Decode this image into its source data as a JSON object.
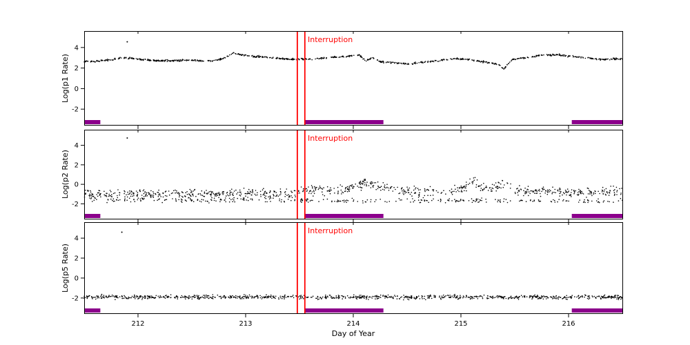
{
  "figure": {
    "xlabel": "Day of Year",
    "annotation_label": "Interruption",
    "colors": {
      "points": "#000000",
      "annotation": "#ff0000",
      "flag_bars": "#8b008b",
      "axis": "#000000",
      "background": "#ffffff"
    }
  },
  "chart_data": [
    {
      "type": "scatter",
      "ylabel": "Log(p1 Rate)",
      "xlim": [
        211.5,
        216.5
      ],
      "ylim": [
        -3.6,
        5.6
      ],
      "xticks": [
        212,
        213,
        214,
        215,
        216
      ],
      "yticks": [
        -2,
        0,
        2,
        4
      ],
      "show_xtick_labels": false,
      "interruption_x": [
        213.48,
        213.55
      ],
      "flag_bars": [
        [
          211.5,
          211.65
        ],
        [
          213.55,
          214.28
        ],
        [
          216.03,
          216.5
        ]
      ],
      "series": [
        {
          "name": "p1-rate",
          "trend": [
            [
              211.5,
              2.6
            ],
            [
              211.6,
              2.65
            ],
            [
              211.75,
              2.8
            ],
            [
              211.85,
              3.0
            ],
            [
              211.95,
              2.95
            ],
            [
              212.05,
              2.8
            ],
            [
              212.2,
              2.7
            ],
            [
              212.35,
              2.72
            ],
            [
              212.5,
              2.78
            ],
            [
              212.6,
              2.7
            ],
            [
              212.7,
              2.72
            ],
            [
              212.8,
              2.95
            ],
            [
              212.88,
              3.45
            ],
            [
              212.95,
              3.3
            ],
            [
              213.05,
              3.15
            ],
            [
              213.2,
              3.05
            ],
            [
              213.35,
              2.9
            ],
            [
              213.5,
              2.85
            ],
            [
              213.65,
              2.9
            ],
            [
              213.8,
              3.05
            ],
            [
              213.95,
              3.15
            ],
            [
              214.05,
              3.3
            ],
            [
              214.12,
              2.7
            ],
            [
              214.18,
              3.0
            ],
            [
              214.25,
              2.6
            ],
            [
              214.35,
              2.55
            ],
            [
              214.5,
              2.4
            ],
            [
              214.65,
              2.55
            ],
            [
              214.8,
              2.75
            ],
            [
              214.95,
              2.9
            ],
            [
              215.1,
              2.8
            ],
            [
              215.25,
              2.55
            ],
            [
              215.35,
              2.35
            ],
            [
              215.4,
              1.95
            ],
            [
              215.48,
              2.85
            ],
            [
              215.6,
              3.0
            ],
            [
              215.75,
              3.25
            ],
            [
              215.9,
              3.3
            ],
            [
              216.0,
              3.15
            ],
            [
              216.15,
              3.0
            ],
            [
              216.3,
              2.85
            ],
            [
              216.45,
              2.9
            ],
            [
              216.5,
              2.9
            ]
          ],
          "noise": 0.07,
          "n_points": 900
        }
      ],
      "outliers": [
        [
          211.9,
          4.55
        ]
      ],
      "seed": 11
    },
    {
      "type": "scatter",
      "ylabel": "Log(p2 Rate)",
      "xlim": [
        211.5,
        216.5
      ],
      "ylim": [
        -3.6,
        5.6
      ],
      "xticks": [
        212,
        213,
        214,
        215,
        216
      ],
      "yticks": [
        -2,
        0,
        2,
        4
      ],
      "show_xtick_labels": false,
      "interruption_x": [
        213.48,
        213.55
      ],
      "flag_bars": [
        [
          211.5,
          211.65
        ],
        [
          213.55,
          214.28
        ],
        [
          216.03,
          216.5
        ]
      ],
      "series": [
        {
          "name": "p2-rate-main",
          "trend": [
            [
              211.5,
              -0.95
            ],
            [
              212.0,
              -1.0
            ],
            [
              212.5,
              -0.95
            ],
            [
              212.9,
              -1.0
            ],
            [
              213.2,
              -0.95
            ],
            [
              213.45,
              -0.85
            ],
            [
              213.6,
              -0.55
            ],
            [
              213.75,
              -0.7
            ],
            [
              213.9,
              -0.55
            ],
            [
              214.0,
              -0.25
            ],
            [
              214.1,
              0.05
            ],
            [
              214.2,
              -0.1
            ],
            [
              214.3,
              -0.45
            ],
            [
              214.45,
              -0.65
            ],
            [
              214.6,
              -0.7
            ],
            [
              214.75,
              -0.75
            ],
            [
              214.9,
              -0.65
            ],
            [
              215.0,
              -0.55
            ],
            [
              215.1,
              0.35
            ],
            [
              215.18,
              -0.3
            ],
            [
              215.3,
              -0.45
            ],
            [
              215.4,
              0.1
            ],
            [
              215.5,
              -0.55
            ],
            [
              215.65,
              -0.75
            ],
            [
              215.8,
              -0.7
            ],
            [
              216.0,
              -0.8
            ],
            [
              216.2,
              -0.75
            ],
            [
              216.35,
              -0.8
            ],
            [
              216.5,
              -0.75
            ]
          ],
          "noise": 0.4,
          "n_points": 850
        },
        {
          "name": "p2-rate-low-band",
          "trend": [
            [
              211.5,
              -1.6
            ],
            [
              213.5,
              -1.65
            ],
            [
              216.5,
              -1.7
            ]
          ],
          "noise": 0.2,
          "n_points": 300
        }
      ],
      "outliers": [
        [
          211.9,
          4.75
        ]
      ],
      "seed": 22
    },
    {
      "type": "scatter",
      "ylabel": "Log(p5 Rate)",
      "xlim": [
        211.5,
        216.5
      ],
      "ylim": [
        -3.6,
        5.6
      ],
      "xticks": [
        212,
        213,
        214,
        215,
        216
      ],
      "yticks": [
        -2,
        0,
        2,
        4
      ],
      "show_xtick_labels": true,
      "interruption_x": [
        213.48,
        213.55
      ],
      "flag_bars": [
        [
          211.5,
          211.65
        ],
        [
          213.55,
          214.28
        ],
        [
          216.03,
          216.5
        ]
      ],
      "series": [
        {
          "name": "p5-rate",
          "trend": [
            [
              211.5,
              -1.9
            ],
            [
              213.5,
              -1.92
            ],
            [
              216.5,
              -1.9
            ]
          ],
          "noise": 0.17,
          "n_points": 950
        }
      ],
      "outliers": [
        [
          211.85,
          4.6
        ]
      ],
      "seed": 33
    }
  ]
}
